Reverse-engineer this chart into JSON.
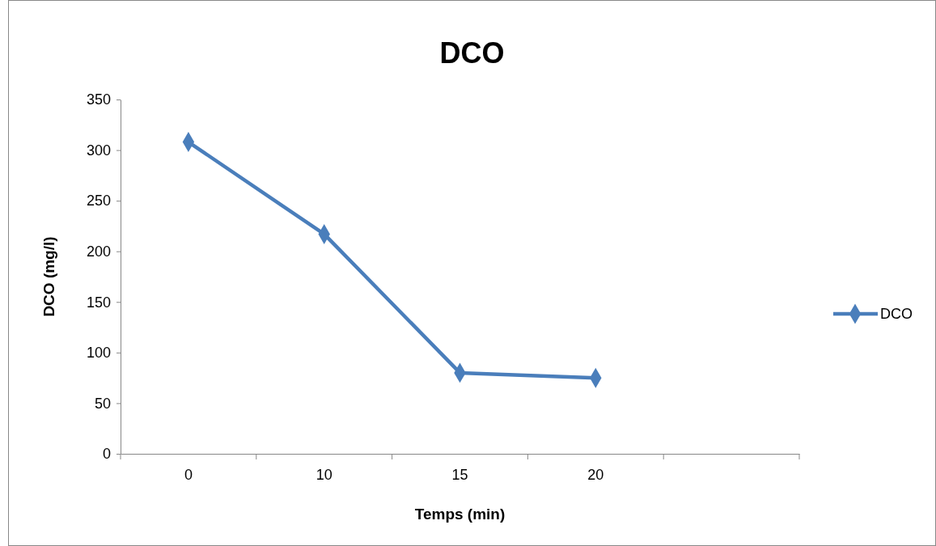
{
  "chart_data": {
    "type": "line",
    "title": "DCO",
    "xlabel": "Temps (min)",
    "ylabel": "DCO (mg/l)",
    "categories": [
      "0",
      "10",
      "15",
      "20",
      null
    ],
    "series": [
      {
        "name": "DCO",
        "color": "#4a7ebb",
        "values": [
          308,
          217,
          80,
          75,
          null
        ]
      }
    ],
    "ylim": [
      0,
      350
    ],
    "yticks": [
      0,
      50,
      100,
      150,
      200,
      250,
      300,
      350
    ],
    "marker": "diamond",
    "line_style": "solid",
    "legend": "right",
    "grid": false
  }
}
